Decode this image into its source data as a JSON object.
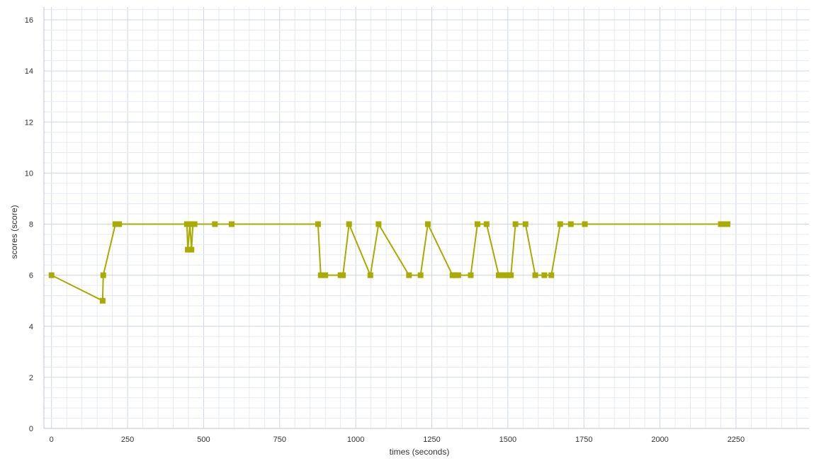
{
  "chart_data": {
    "type": "line",
    "title": "",
    "xlabel": "times (seconds)",
    "ylabel": "scores (score)",
    "xlim": [
      -25,
      2490
    ],
    "ylim": [
      0,
      16.5
    ],
    "x_ticks": [
      0,
      250,
      500,
      750,
      1000,
      1250,
      1500,
      1750,
      2000,
      2250
    ],
    "y_ticks": [
      0,
      2,
      4,
      6,
      8,
      10,
      12,
      14,
      16
    ],
    "grid": true,
    "series_color": "#a8ab00",
    "grid_major_color": "#cfd6e0",
    "grid_minor_color": "#e6eaf0",
    "series": [
      {
        "x": [
          0,
          168,
          170,
          210,
          222,
          445,
          448,
          455,
          460,
          465,
          470,
          537,
          592,
          876,
          885,
          900,
          950,
          958,
          978,
          1048,
          1075,
          1175,
          1213,
          1237,
          1318,
          1327,
          1337,
          1378,
          1400,
          1430,
          1470,
          1480,
          1490,
          1500,
          1510,
          1525,
          1558,
          1590,
          1620,
          1643,
          1672,
          1707,
          1753,
          2200,
          2210,
          2222
        ],
        "y": [
          6,
          5,
          6,
          8,
          8,
          8,
          7,
          8,
          7,
          8,
          8,
          8,
          8,
          8,
          6,
          6,
          6,
          6,
          8,
          6,
          8,
          6,
          6,
          8,
          6,
          6,
          6,
          6,
          8,
          8,
          6,
          6,
          6,
          6,
          6,
          8,
          8,
          6,
          6,
          6,
          8,
          8,
          8,
          8,
          8,
          8
        ]
      }
    ]
  }
}
